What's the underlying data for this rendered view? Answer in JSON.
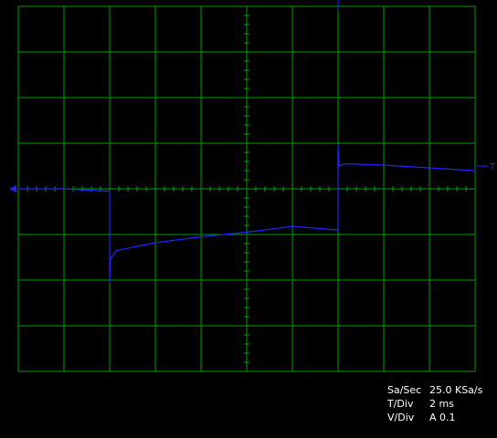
{
  "top_marker_text": "′′   ⁻ ⁻",
  "trigger_marker": "T",
  "readout": {
    "sample_rate_label": "Sa/Sec",
    "sample_rate_value": "25.0 KSa/s",
    "time_div_label": "T/Div",
    "time_div_value": "2 ms",
    "volt_div_label": "V/Div",
    "volt_div_value": "A 0.1"
  },
  "colors": {
    "background": "#000000",
    "grid": "#00a000",
    "trace": "#2222ff",
    "text": "#ffffff"
  },
  "grid_divisions": {
    "horizontal": 10,
    "vertical": 8
  },
  "chart_data": {
    "type": "line",
    "title": "",
    "xlabel": "",
    "ylabel": "",
    "x_unit": "ms",
    "y_unit": "A",
    "xlim": [
      0,
      20
    ],
    "ylim": [
      -0.4,
      0.4
    ],
    "series": [
      {
        "x": [
          0,
          2,
          3.9,
          4.0,
          4.0,
          4.02,
          4.3,
          6,
          8,
          10,
          12,
          13.95,
          14.0,
          14.0,
          14.05,
          14.3,
          16,
          18,
          20
        ],
        "y": [
          0.0,
          0.0,
          -0.005,
          -0.005,
          -0.205,
          -0.155,
          -0.135,
          -0.118,
          -0.105,
          -0.095,
          -0.082,
          -0.09,
          -0.09,
          0.096,
          0.05,
          0.055,
          0.052,
          0.046,
          0.04
        ]
      }
    ]
  }
}
